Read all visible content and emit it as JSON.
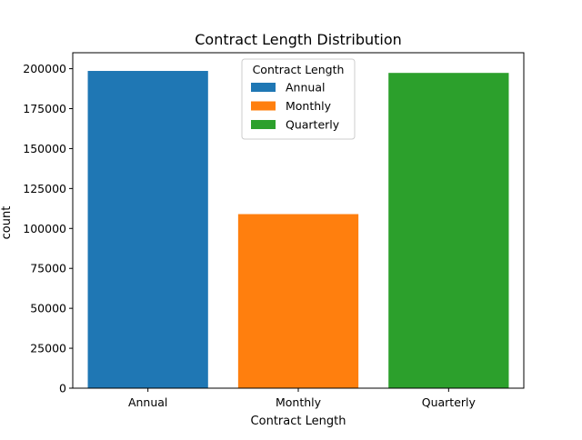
{
  "chart_data": {
    "type": "bar",
    "title": "Contract Length Distribution",
    "xlabel": "Contract Length",
    "ylabel": "count",
    "categories": [
      "Annual",
      "Monthly",
      "Quarterly"
    ],
    "values": [
      198608,
      108965,
      197364
    ],
    "colors": [
      "#1f77b4",
      "#ff7f0e",
      "#2ca02c"
    ],
    "ylim": [
      0,
      210000
    ],
    "yticks": [
      0,
      25000,
      50000,
      75000,
      100000,
      125000,
      150000,
      175000,
      200000
    ],
    "grid": false,
    "legend": {
      "title": "Contract Length",
      "position": "top-center",
      "entries": [
        "Annual",
        "Monthly",
        "Quarterly"
      ]
    }
  }
}
